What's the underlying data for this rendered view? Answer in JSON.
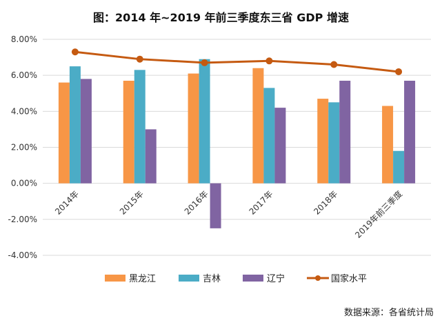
{
  "chart_data": {
    "type": "bar",
    "title": "图：2014 年~2019 年前三季度东三省 GDP 增速",
    "categories": [
      "2014年",
      "2015年",
      "2016年",
      "2017年",
      "2018年",
      "2019年前三季度"
    ],
    "series": [
      {
        "name": "黑龙江",
        "type": "bar",
        "color": "#F79646",
        "values": [
          5.6,
          5.7,
          6.1,
          6.4,
          4.7,
          4.3
        ]
      },
      {
        "name": "吉林",
        "type": "bar",
        "color": "#4BACC6",
        "values": [
          6.5,
          6.3,
          6.9,
          5.3,
          4.5,
          1.8
        ]
      },
      {
        "name": "辽宁",
        "type": "bar",
        "color": "#8064A2",
        "values": [
          5.8,
          3.0,
          -2.5,
          4.2,
          5.7,
          5.7
        ]
      },
      {
        "name": "国家水平",
        "type": "line",
        "color": "#C55A11",
        "values": [
          7.3,
          6.9,
          6.7,
          6.8,
          6.6,
          6.2
        ]
      }
    ],
    "yticks": [
      "8.00%",
      "6.00%",
      "4.00%",
      "2.00%",
      "0.00%",
      "-2.00%",
      "-4.00%"
    ],
    "ylim": [
      -4,
      8
    ],
    "unit": "%",
    "grid": true,
    "legend": "bottom",
    "source": "数据来源：各省统计局"
  }
}
